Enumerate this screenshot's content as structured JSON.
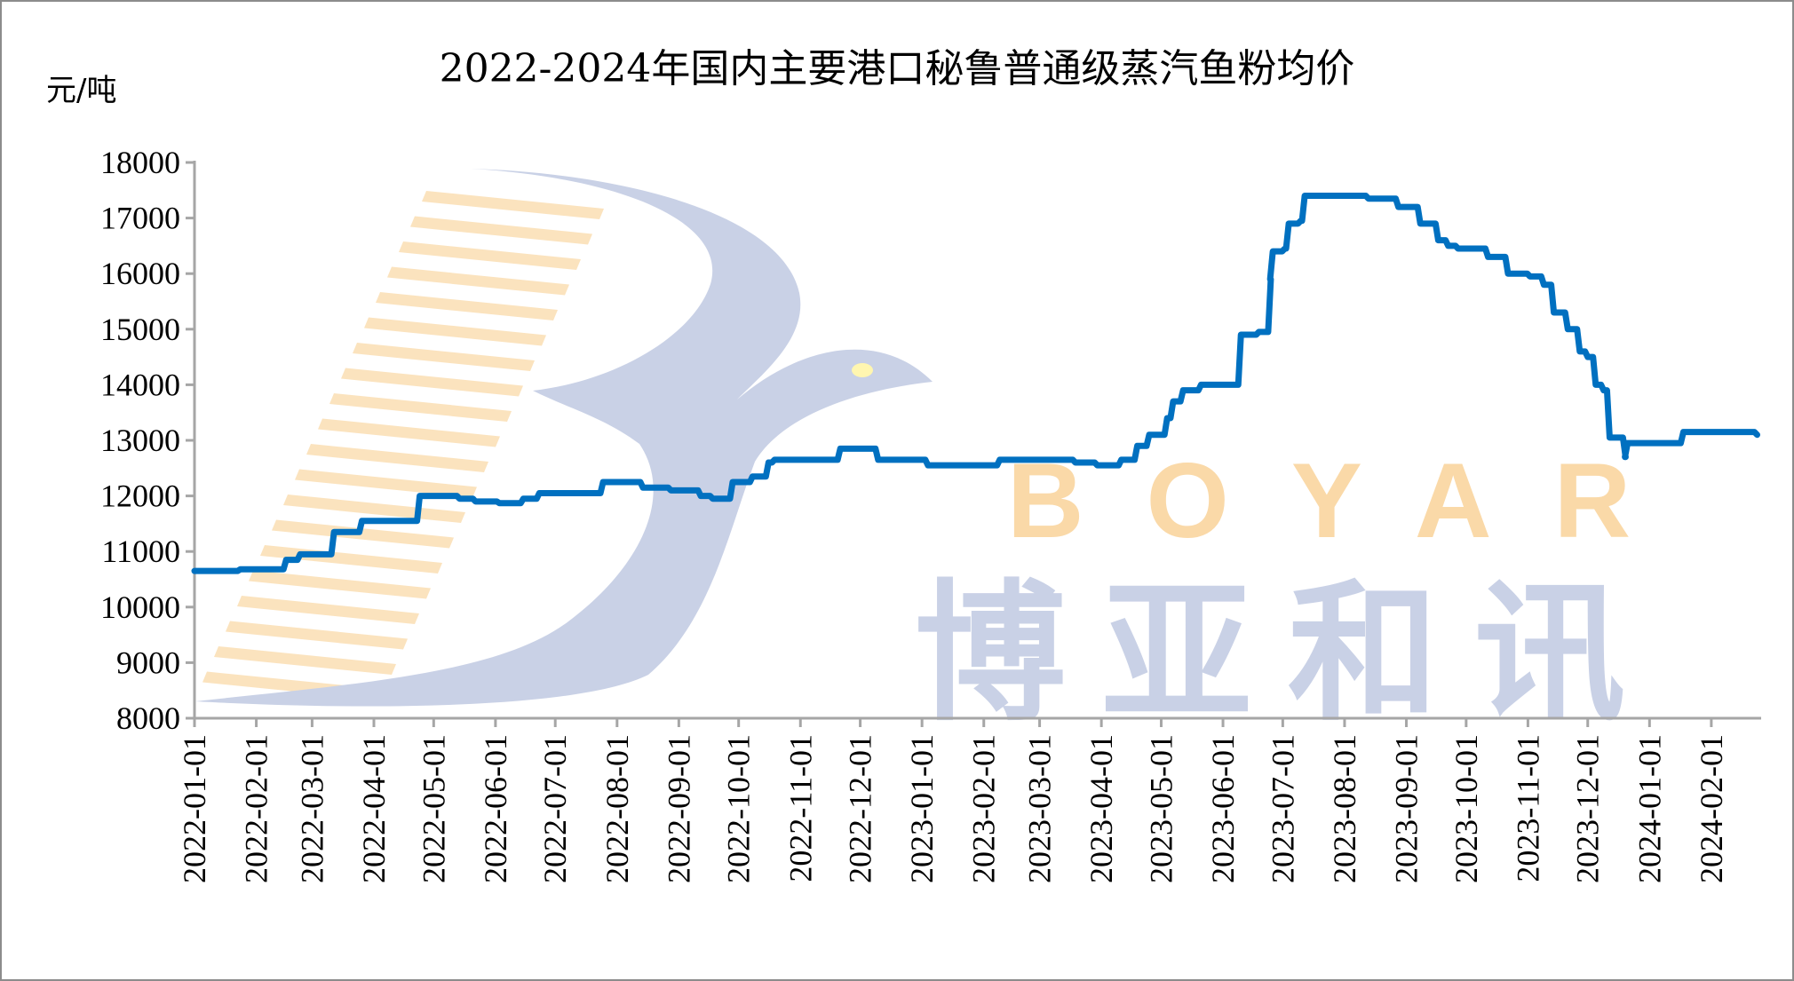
{
  "chart_data": {
    "type": "line",
    "title": "2022-2024年国内主要港口秘鲁普通级蒸汽鱼粉均价",
    "ylabel": "元/吨",
    "xlabel": "",
    "ylim": [
      8000,
      18000
    ],
    "yticks": [
      "8000",
      "9000",
      "10000",
      "11000",
      "12000",
      "13000",
      "14000",
      "15000",
      "16000",
      "17000",
      "18000"
    ],
    "xlim": [
      "2022-01-01",
      "2024-02-26"
    ],
    "xticks": [
      "2022-01-01",
      "2022-02-01",
      "2022-03-01",
      "2022-04-01",
      "2022-05-01",
      "2022-06-01",
      "2022-07-01",
      "2022-08-01",
      "2022-09-01",
      "2022-10-01",
      "2022-11-01",
      "2022-12-01",
      "2023-01-01",
      "2023-02-01",
      "2023-03-01",
      "2023-04-01",
      "2023-05-01",
      "2023-06-01",
      "2023-07-01",
      "2023-08-01",
      "2023-09-01",
      "2023-10-01",
      "2023-11-01",
      "2023-12-01",
      "2024-01-01",
      "2024-02-01"
    ],
    "grid": false,
    "legend": "none",
    "line_color": "#0070C0",
    "watermark": {
      "brand_latin": "BOYAR",
      "brand_cn": "博亚和讯",
      "brand_colors": [
        "#C9D1E6",
        "#FAD9A8"
      ]
    },
    "series": [
      {
        "points": [
          [
            "2022-01-01",
            10650
          ],
          [
            "2022-01-24",
            10680
          ],
          [
            "2022-02-16",
            10850
          ],
          [
            "2022-02-23",
            10950
          ],
          [
            "2022-03-12",
            11350
          ],
          [
            "2022-03-26",
            11550
          ],
          [
            "2022-04-24",
            12000
          ],
          [
            "2022-05-14",
            11950
          ],
          [
            "2022-05-22",
            11900
          ],
          [
            "2022-06-03",
            11870
          ],
          [
            "2022-06-15",
            11950
          ],
          [
            "2022-06-23",
            12050
          ],
          [
            "2022-07-25",
            12250
          ],
          [
            "2022-08-14",
            12150
          ],
          [
            "2022-08-28",
            12100
          ],
          [
            "2022-09-12",
            12000
          ],
          [
            "2022-09-18",
            11950
          ],
          [
            "2022-09-28",
            12250
          ],
          [
            "2022-10-08",
            12350
          ],
          [
            "2022-10-16",
            12600
          ],
          [
            "2022-10-19",
            12650
          ],
          [
            "2022-11-21",
            12850
          ],
          [
            "2022-12-10",
            12650
          ],
          [
            "2023-01-04",
            12550
          ],
          [
            "2023-02-09",
            12650
          ],
          [
            "2023-03-19",
            12600
          ],
          [
            "2023-03-30",
            12550
          ],
          [
            "2023-04-11",
            12650
          ],
          [
            "2023-04-19",
            12900
          ],
          [
            "2023-04-25",
            13100
          ],
          [
            "2023-05-04",
            13400
          ],
          [
            "2023-05-07",
            13700
          ],
          [
            "2023-05-12",
            13900
          ],
          [
            "2023-05-21",
            14000
          ],
          [
            "2023-06-10",
            14900
          ],
          [
            "2023-06-19",
            14950
          ],
          [
            "2023-06-25",
            15900
          ],
          [
            "2023-06-26",
            16400
          ],
          [
            "2023-07-02",
            16450
          ],
          [
            "2023-07-04",
            16900
          ],
          [
            "2023-07-10",
            16950
          ],
          [
            "2023-07-12",
            17400
          ],
          [
            "2023-08-13",
            17350
          ],
          [
            "2023-08-28",
            17200
          ],
          [
            "2023-09-08",
            16900
          ],
          [
            "2023-09-17",
            16600
          ],
          [
            "2023-09-22",
            16500
          ],
          [
            "2023-09-27",
            16450
          ],
          [
            "2023-10-12",
            16300
          ],
          [
            "2023-10-22",
            16000
          ],
          [
            "2023-11-02",
            15950
          ],
          [
            "2023-11-09",
            15800
          ],
          [
            "2023-11-14",
            15300
          ],
          [
            "2023-11-21",
            15000
          ],
          [
            "2023-11-27",
            14600
          ],
          [
            "2023-12-01",
            14500
          ],
          [
            "2023-12-05",
            14000
          ],
          [
            "2023-12-09",
            13900
          ],
          [
            "2023-12-12",
            13050
          ],
          [
            "2023-12-20",
            12700
          ],
          [
            "2023-12-21",
            12950
          ],
          [
            "2024-01-16",
            12950
          ],
          [
            "2024-01-18",
            13150
          ],
          [
            "2024-02-19",
            13150
          ],
          [
            "2024-02-24",
            13100
          ]
        ]
      }
    ]
  }
}
